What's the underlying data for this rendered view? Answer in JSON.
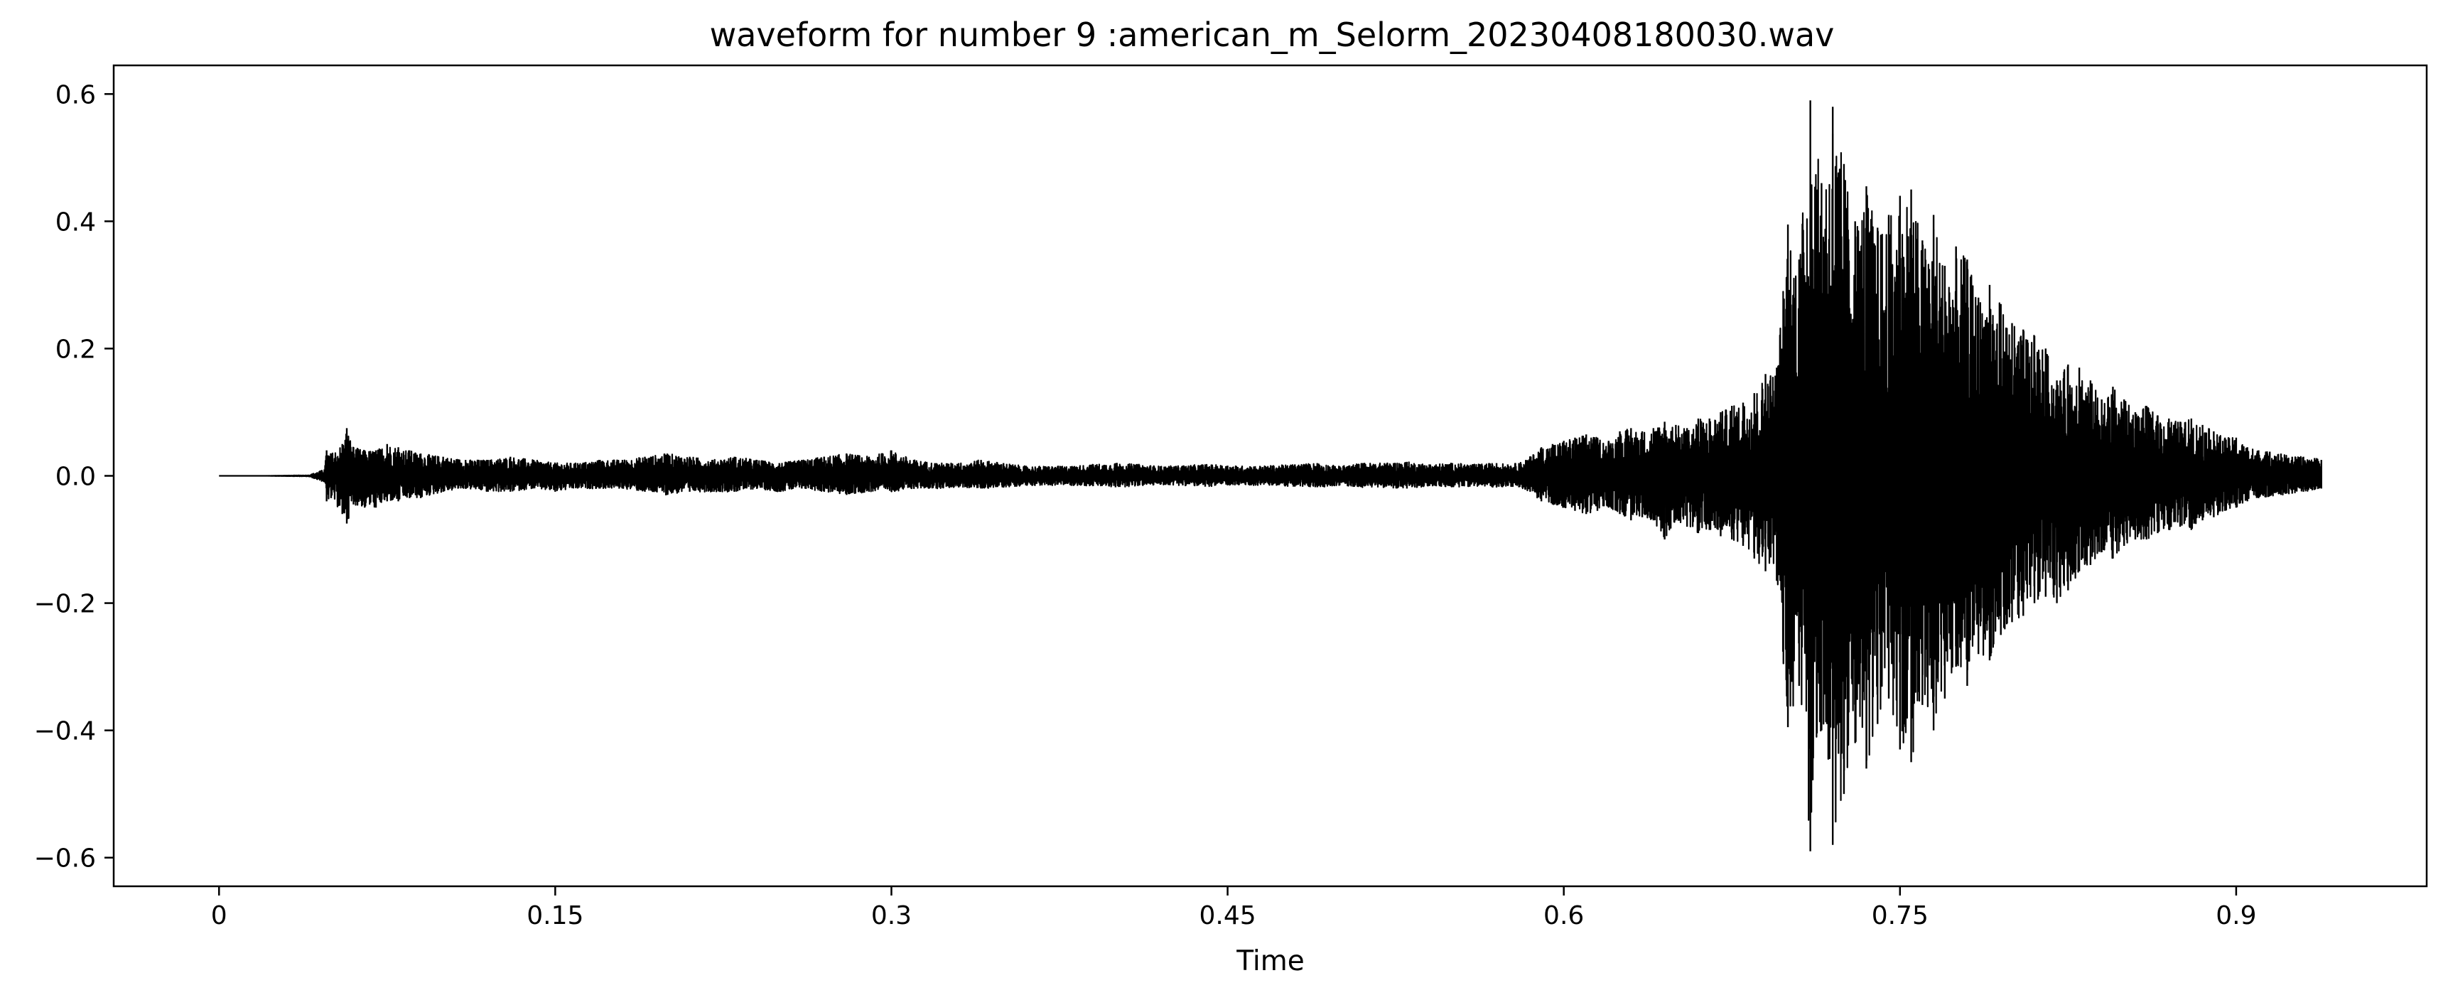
{
  "chart_data": {
    "type": "line",
    "title": "waveform for number 9 :american_m_Selorm_20230408180030.wav",
    "xlabel": "Time",
    "ylabel": "",
    "xlim": [
      -0.047,
      0.985
    ],
    "ylim": [
      -0.645,
      0.645
    ],
    "x_ticks": [
      0,
      0.15,
      0.3,
      0.45,
      0.6,
      0.75,
      0.9
    ],
    "x_tick_labels": [
      "0",
      "0.15",
      "0.3",
      "0.45",
      "0.6",
      "0.75",
      "0.9"
    ],
    "y_ticks": [
      0.6,
      0.4,
      0.2,
      0.0,
      -0.2,
      -0.4,
      -0.6
    ],
    "y_tick_labels": [
      "0.6",
      "0.4",
      "0.2",
      "0.0",
      "−0.2",
      "−0.4",
      "−0.6"
    ],
    "grid": false,
    "legend": "none",
    "line_color": "#000000",
    "series": [
      {
        "x": [
          0.0,
          0.02,
          0.04,
          0.047,
          0.048,
          0.05,
          0.055,
          0.057,
          0.06,
          0.065,
          0.07,
          0.075,
          0.08,
          0.085,
          0.09,
          0.1,
          0.11,
          0.12,
          0.13,
          0.14,
          0.15,
          0.16,
          0.17,
          0.18,
          0.19,
          0.2,
          0.21,
          0.22,
          0.23,
          0.24,
          0.25,
          0.26,
          0.27,
          0.28,
          0.29,
          0.3,
          0.31,
          0.32,
          0.33,
          0.34,
          0.35,
          0.36,
          0.37,
          0.38,
          0.39,
          0.4,
          0.41,
          0.42,
          0.43,
          0.44,
          0.45,
          0.46,
          0.47,
          0.48,
          0.49,
          0.5,
          0.51,
          0.52,
          0.53,
          0.54,
          0.55,
          0.56,
          0.57,
          0.575,
          0.58,
          0.585,
          0.59,
          0.595,
          0.6,
          0.605,
          0.61,
          0.615,
          0.62,
          0.625,
          0.63,
          0.635,
          0.64,
          0.645,
          0.65,
          0.655,
          0.66,
          0.665,
          0.67,
          0.675,
          0.68,
          0.685,
          0.69,
          0.695,
          0.7,
          0.705,
          0.71,
          0.715,
          0.72,
          0.725,
          0.73,
          0.735,
          0.74,
          0.745,
          0.75,
          0.755,
          0.76,
          0.765,
          0.77,
          0.775,
          0.78,
          0.785,
          0.79,
          0.795,
          0.8,
          0.805,
          0.81,
          0.815,
          0.82,
          0.825,
          0.83,
          0.835,
          0.84,
          0.845,
          0.85,
          0.855,
          0.86,
          0.865,
          0.87,
          0.875,
          0.88,
          0.885,
          0.89,
          0.895,
          0.9,
          0.905,
          0.91,
          0.915,
          0.92,
          0.925,
          0.93,
          0.935,
          0.938
        ],
        "y_max": [
          0.0,
          0.0,
          0.001,
          0.01,
          0.04,
          0.035,
          0.05,
          0.075,
          0.045,
          0.04,
          0.04,
          0.05,
          0.045,
          0.04,
          0.035,
          0.03,
          0.025,
          0.025,
          0.03,
          0.025,
          0.02,
          0.02,
          0.025,
          0.025,
          0.03,
          0.035,
          0.03,
          0.025,
          0.03,
          0.025,
          0.02,
          0.025,
          0.03,
          0.035,
          0.03,
          0.04,
          0.025,
          0.02,
          0.02,
          0.025,
          0.02,
          0.015,
          0.015,
          0.015,
          0.018,
          0.02,
          0.018,
          0.015,
          0.016,
          0.018,
          0.016,
          0.015,
          0.016,
          0.018,
          0.02,
          0.015,
          0.02,
          0.02,
          0.022,
          0.018,
          0.02,
          0.018,
          0.02,
          0.018,
          0.02,
          0.03,
          0.045,
          0.05,
          0.055,
          0.06,
          0.065,
          0.06,
          0.055,
          0.07,
          0.075,
          0.07,
          0.075,
          0.085,
          0.08,
          0.075,
          0.09,
          0.09,
          0.1,
          0.11,
          0.115,
          0.13,
          0.16,
          0.17,
          0.395,
          0.34,
          0.59,
          0.46,
          0.58,
          0.49,
          0.4,
          0.455,
          0.39,
          0.41,
          0.44,
          0.45,
          0.37,
          0.41,
          0.33,
          0.36,
          0.34,
          0.28,
          0.3,
          0.27,
          0.24,
          0.23,
          0.22,
          0.2,
          0.15,
          0.175,
          0.17,
          0.15,
          0.12,
          0.14,
          0.12,
          0.1,
          0.11,
          0.095,
          0.09,
          0.085,
          0.09,
          0.08,
          0.07,
          0.06,
          0.06,
          0.045,
          0.04,
          0.038,
          0.035,
          0.03,
          0.03,
          0.028,
          0.025,
          0.02,
          0.018
        ],
        "y_min": [
          0.0,
          0.0,
          -0.001,
          -0.01,
          -0.04,
          -0.035,
          -0.06,
          -0.075,
          -0.045,
          -0.05,
          -0.05,
          -0.04,
          -0.04,
          -0.035,
          -0.035,
          -0.025,
          -0.02,
          -0.025,
          -0.025,
          -0.02,
          -0.025,
          -0.02,
          -0.02,
          -0.02,
          -0.025,
          -0.03,
          -0.025,
          -0.025,
          -0.025,
          -0.02,
          -0.025,
          -0.02,
          -0.025,
          -0.03,
          -0.025,
          -0.025,
          -0.02,
          -0.02,
          -0.018,
          -0.02,
          -0.018,
          -0.015,
          -0.015,
          -0.015,
          -0.016,
          -0.018,
          -0.016,
          -0.014,
          -0.015,
          -0.017,
          -0.015,
          -0.015,
          -0.015,
          -0.017,
          -0.018,
          -0.015,
          -0.018,
          -0.018,
          -0.02,
          -0.016,
          -0.018,
          -0.016,
          -0.018,
          -0.016,
          -0.018,
          -0.025,
          -0.04,
          -0.045,
          -0.05,
          -0.055,
          -0.06,
          -0.055,
          -0.05,
          -0.06,
          -0.07,
          -0.065,
          -0.07,
          -0.1,
          -0.07,
          -0.08,
          -0.09,
          -0.085,
          -0.095,
          -0.1,
          -0.11,
          -0.13,
          -0.15,
          -0.165,
          -0.395,
          -0.33,
          -0.59,
          -0.4,
          -0.58,
          -0.5,
          -0.42,
          -0.46,
          -0.39,
          -0.35,
          -0.43,
          -0.45,
          -0.36,
          -0.4,
          -0.35,
          -0.3,
          -0.33,
          -0.28,
          -0.29,
          -0.25,
          -0.23,
          -0.22,
          -0.2,
          -0.19,
          -0.2,
          -0.18,
          -0.15,
          -0.14,
          -0.12,
          -0.13,
          -0.11,
          -0.1,
          -0.1,
          -0.09,
          -0.085,
          -0.08,
          -0.085,
          -0.07,
          -0.065,
          -0.055,
          -0.05,
          -0.04,
          -0.035,
          -0.032,
          -0.03,
          -0.028,
          -0.025,
          -0.022,
          -0.02,
          -0.018,
          -0.016
        ]
      }
    ]
  }
}
